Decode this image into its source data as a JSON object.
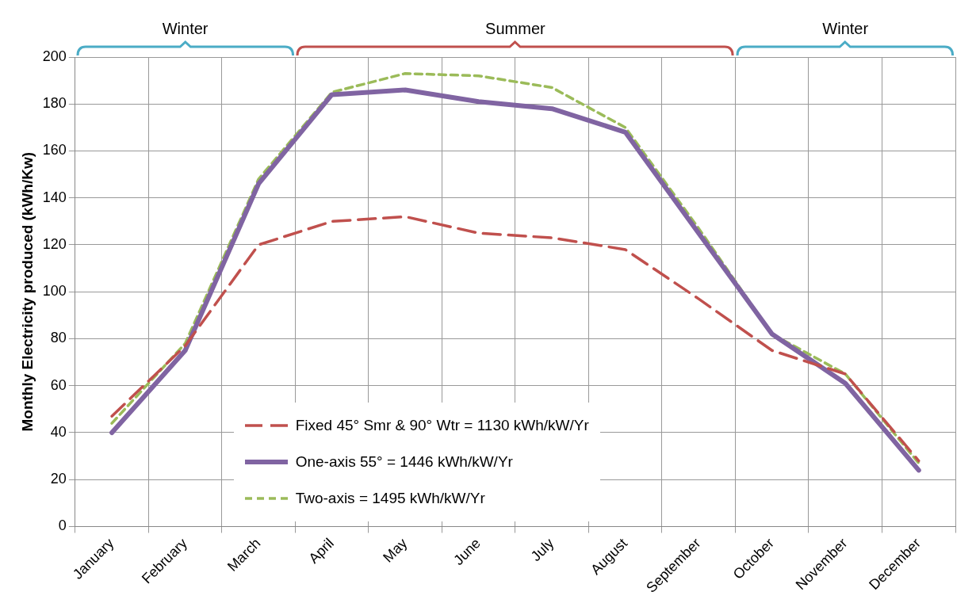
{
  "chart_data": {
    "type": "line",
    "ylabel": "Monthly Electricity produced (kWh/Kw)",
    "categories": [
      "January",
      "February",
      "March",
      "April",
      "May",
      "June",
      "July",
      "August",
      "September",
      "October",
      "November",
      "December"
    ],
    "series": [
      {
        "name": "Fixed 45° Smr & 90° Wtr = 1130 kWh/kW/Yr",
        "color": "#c0504d",
        "line_style": "dashed",
        "values": [
          47,
          77,
          120,
          130,
          132,
          125,
          123,
          118,
          97,
          75,
          65,
          28
        ]
      },
      {
        "name": "One-axis 55° = 1446 kWh/kW/Yr",
        "color": "#8064a2",
        "line_style": "solid",
        "values": [
          40,
          75,
          146,
          184,
          186,
          181,
          178,
          168,
          125,
          82,
          61,
          24
        ]
      },
      {
        "name": "Two-axis = 1495 kWh/kW/Yr",
        "color": "#9bbb59",
        "line_style": "dotted",
        "values": [
          44,
          78,
          148,
          185,
          193,
          192,
          187,
          170,
          127,
          82,
          65,
          27
        ]
      }
    ],
    "ylim": [
      0,
      200
    ],
    "yticks": [
      0,
      20,
      40,
      60,
      80,
      100,
      120,
      140,
      160,
      180,
      200
    ],
    "annotations": [
      "Winter",
      "Summer",
      "Winter"
    ],
    "grid": true,
    "legend": "bottom",
    "marker": "none"
  }
}
